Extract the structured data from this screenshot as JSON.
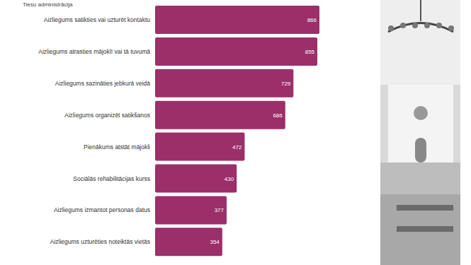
{
  "chart_data": {
    "type": "bar",
    "orientation": "horizontal",
    "subtitle": "Tiesu administrācija",
    "categories": [
      "Aizliegums satikties vai uzturēt kontaktu",
      "Aizliegums atrasties mājoklī vai tā tuvumā",
      "Aizliegums sazināties jebkurā veidā",
      "Aizliegums organizēt satikšanos",
      "Pienākums atstāt mājokli",
      "Sociālās rehabilitācijas kurss",
      "Aizliegums izmantot personas datus",
      "Aizliegums uzturēties noteiktās vietās"
    ],
    "values": [
      866,
      855,
      729,
      686,
      472,
      430,
      377,
      354
    ],
    "color": "#9b2f6a",
    "xlim": [
      0,
      866
    ],
    "data_labels": true,
    "tick_labels": "y",
    "grid": false
  }
}
